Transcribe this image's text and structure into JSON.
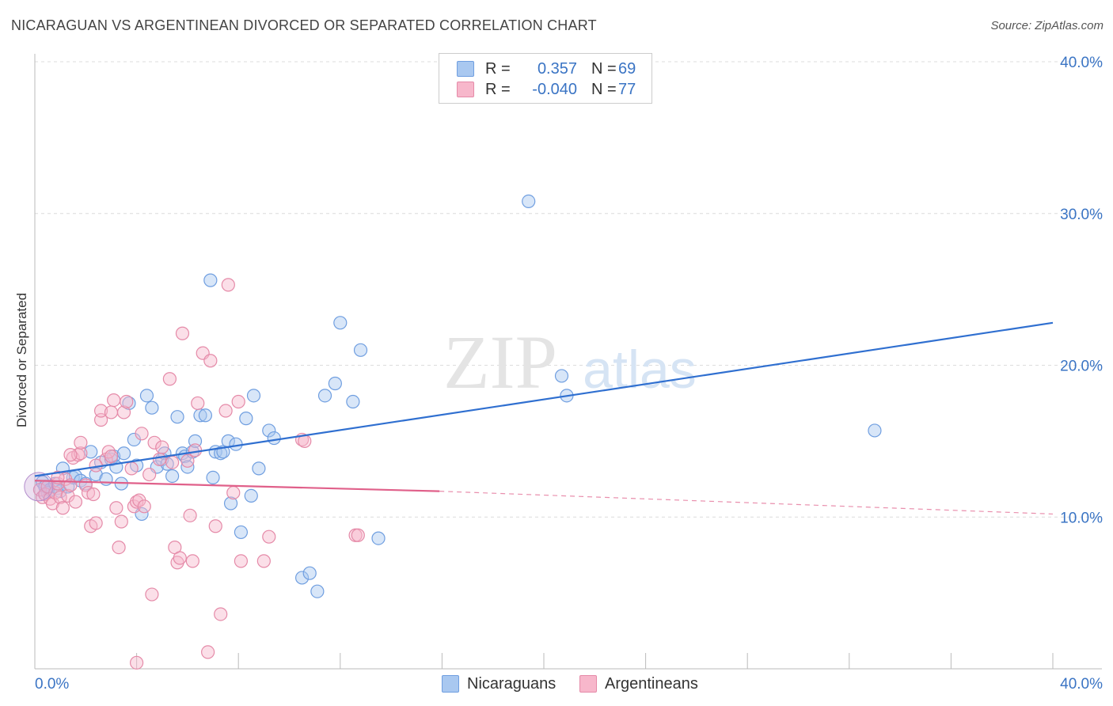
{
  "title": "NICARAGUAN VS ARGENTINEAN DIVORCED OR SEPARATED CORRELATION CHART",
  "source": "Source: ZipAtlas.com",
  "watermark": {
    "zip": "ZIP",
    "atlas": "atlas"
  },
  "legend": {
    "rows": [
      {
        "r_label": "R =",
        "r_value": "0.357",
        "n_label": "N =",
        "n_value": "69",
        "color": "#a9c8f0",
        "border": "#6f9ee0"
      },
      {
        "r_label": "R =",
        "r_value": "-0.040",
        "n_label": "N =",
        "n_value": "77",
        "color": "#f7b7cb",
        "border": "#e58aa8"
      }
    ]
  },
  "bottom_legend": [
    {
      "label": "Nicaraguans",
      "color": "#a9c8f0",
      "border": "#6f9ee0"
    },
    {
      "label": "Argentineans",
      "color": "#f7b7cb",
      "border": "#e58aa8"
    }
  ],
  "chart_data": {
    "type": "scatter",
    "title": "NICARAGUAN VS ARGENTINEAN DIVORCED OR SEPARATED CORRELATION CHART",
    "xlabel": "",
    "ylabel": "Divorced or Separated",
    "xlim": [
      0,
      40
    ],
    "ylim": [
      0,
      40
    ],
    "x_tick_labels": [
      "0.0%",
      "40.0%"
    ],
    "y_ticks": [
      10,
      20,
      30,
      40
    ],
    "y_tick_labels": [
      "10.0%",
      "20.0%",
      "30.0%",
      "40.0%"
    ],
    "grid": true,
    "legend_placement": "top-center",
    "series": [
      {
        "name": "Nicaraguans",
        "color": "#6f9ee0",
        "fill": "#a9c8f0",
        "line_color": "#2f6fd0",
        "trend": {
          "x": [
            0,
            40
          ],
          "y": [
            12.7,
            22.8
          ]
        },
        "points": [
          [
            0.3,
            12.3
          ],
          [
            0.4,
            12.0
          ],
          [
            0.5,
            11.6
          ],
          [
            0.6,
            11.8
          ],
          [
            0.8,
            12.2
          ],
          [
            0.9,
            11.9
          ],
          [
            1.0,
            11.7
          ],
          [
            1.1,
            13.2
          ],
          [
            1.3,
            12.0
          ],
          [
            1.5,
            12.6
          ],
          [
            1.6,
            12.7
          ],
          [
            1.8,
            12.4
          ],
          [
            2.0,
            12.2
          ],
          [
            2.2,
            14.3
          ],
          [
            2.4,
            12.8
          ],
          [
            2.6,
            13.6
          ],
          [
            2.8,
            12.5
          ],
          [
            3.0,
            13.8
          ],
          [
            3.1,
            14.0
          ],
          [
            3.2,
            13.3
          ],
          [
            3.4,
            12.2
          ],
          [
            3.5,
            14.2
          ],
          [
            3.7,
            17.5
          ],
          [
            3.9,
            15.1
          ],
          [
            4.0,
            13.4
          ],
          [
            4.2,
            10.2
          ],
          [
            4.4,
            18.0
          ],
          [
            4.6,
            17.2
          ],
          [
            4.8,
            13.3
          ],
          [
            5.0,
            13.8
          ],
          [
            5.1,
            14.2
          ],
          [
            5.2,
            13.5
          ],
          [
            5.4,
            12.7
          ],
          [
            5.6,
            16.6
          ],
          [
            5.8,
            14.2
          ],
          [
            5.9,
            14.0
          ],
          [
            6.0,
            13.3
          ],
          [
            6.2,
            14.3
          ],
          [
            6.3,
            15.0
          ],
          [
            6.5,
            16.7
          ],
          [
            6.7,
            16.7
          ],
          [
            6.9,
            25.6
          ],
          [
            7.0,
            12.6
          ],
          [
            7.1,
            14.3
          ],
          [
            7.3,
            14.2
          ],
          [
            7.4,
            14.3
          ],
          [
            7.6,
            15.0
          ],
          [
            7.7,
            10.9
          ],
          [
            7.9,
            14.8
          ],
          [
            8.1,
            9.0
          ],
          [
            8.3,
            16.5
          ],
          [
            8.5,
            11.4
          ],
          [
            8.6,
            18.0
          ],
          [
            8.8,
            13.2
          ],
          [
            9.2,
            15.7
          ],
          [
            9.4,
            15.2
          ],
          [
            10.5,
            6.0
          ],
          [
            10.8,
            6.3
          ],
          [
            11.1,
            5.1
          ],
          [
            11.4,
            18.0
          ],
          [
            11.8,
            18.8
          ],
          [
            12.0,
            22.8
          ],
          [
            12.5,
            17.6
          ],
          [
            12.8,
            21.0
          ],
          [
            13.5,
            8.6
          ],
          [
            19.4,
            30.8
          ],
          [
            20.7,
            19.3
          ],
          [
            20.9,
            18.0
          ],
          [
            33.0,
            15.7
          ]
        ]
      },
      {
        "name": "Argentineans",
        "color": "#e58aa8",
        "fill": "#f7b7cb",
        "line_color": "#e0608a",
        "trend": {
          "x": [
            0,
            15.9
          ],
          "y": [
            12.4,
            11.7
          ]
        },
        "trend_dashed": {
          "x": [
            15.9,
            40
          ],
          "y": [
            11.7,
            10.2
          ]
        },
        "points": [
          [
            0.2,
            11.8
          ],
          [
            0.3,
            11.3
          ],
          [
            0.4,
            11.5
          ],
          [
            0.5,
            12.0
          ],
          [
            0.6,
            11.2
          ],
          [
            0.7,
            10.9
          ],
          [
            0.8,
            11.6
          ],
          [
            0.9,
            12.2
          ],
          [
            1.0,
            11.3
          ],
          [
            1.1,
            10.6
          ],
          [
            1.2,
            12.5
          ],
          [
            1.3,
            11.4
          ],
          [
            1.4,
            12.1
          ],
          [
            1.5,
            13.9
          ],
          [
            1.6,
            11.0
          ],
          [
            1.7,
            14.1
          ],
          [
            1.8,
            14.2
          ],
          [
            1.8,
            14.9
          ],
          [
            2.0,
            12.1
          ],
          [
            2.1,
            11.6
          ],
          [
            2.2,
            9.4
          ],
          [
            2.3,
            11.5
          ],
          [
            2.4,
            9.6
          ],
          [
            2.6,
            16.4
          ],
          [
            2.6,
            17.0
          ],
          [
            2.8,
            13.8
          ],
          [
            2.9,
            14.3
          ],
          [
            3.0,
            16.9
          ],
          [
            3.1,
            17.7
          ],
          [
            3.2,
            10.6
          ],
          [
            3.3,
            8.0
          ],
          [
            3.4,
            9.7
          ],
          [
            3.5,
            16.9
          ],
          [
            3.6,
            17.6
          ],
          [
            3.8,
            13.2
          ],
          [
            3.9,
            10.7
          ],
          [
            4.0,
            11.0
          ],
          [
            4.0,
            0.4
          ],
          [
            4.1,
            11.1
          ],
          [
            4.2,
            15.5
          ],
          [
            4.3,
            10.7
          ],
          [
            4.5,
            12.8
          ],
          [
            4.6,
            4.9
          ],
          [
            4.7,
            14.9
          ],
          [
            4.9,
            13.8
          ],
          [
            5.0,
            14.6
          ],
          [
            5.3,
            19.1
          ],
          [
            5.4,
            13.6
          ],
          [
            5.5,
            8.0
          ],
          [
            5.6,
            7.0
          ],
          [
            5.7,
            7.3
          ],
          [
            5.8,
            22.1
          ],
          [
            6.0,
            13.7
          ],
          [
            6.1,
            10.1
          ],
          [
            6.2,
            7.1
          ],
          [
            6.3,
            14.4
          ],
          [
            6.4,
            17.5
          ],
          [
            6.6,
            20.8
          ],
          [
            6.8,
            1.1
          ],
          [
            6.9,
            20.3
          ],
          [
            7.1,
            9.4
          ],
          [
            7.3,
            3.6
          ],
          [
            7.5,
            17.0
          ],
          [
            7.6,
            25.3
          ],
          [
            7.8,
            11.6
          ],
          [
            8.0,
            17.6
          ],
          [
            8.1,
            7.1
          ],
          [
            9.0,
            7.1
          ],
          [
            9.2,
            8.7
          ],
          [
            10.5,
            15.1
          ],
          [
            10.6,
            15.0
          ],
          [
            12.6,
            8.8
          ],
          [
            12.7,
            8.8
          ],
          [
            1.4,
            14.1
          ],
          [
            2.4,
            13.4
          ],
          [
            3.0,
            14.0
          ],
          [
            0.9,
            12.6
          ]
        ]
      }
    ]
  }
}
